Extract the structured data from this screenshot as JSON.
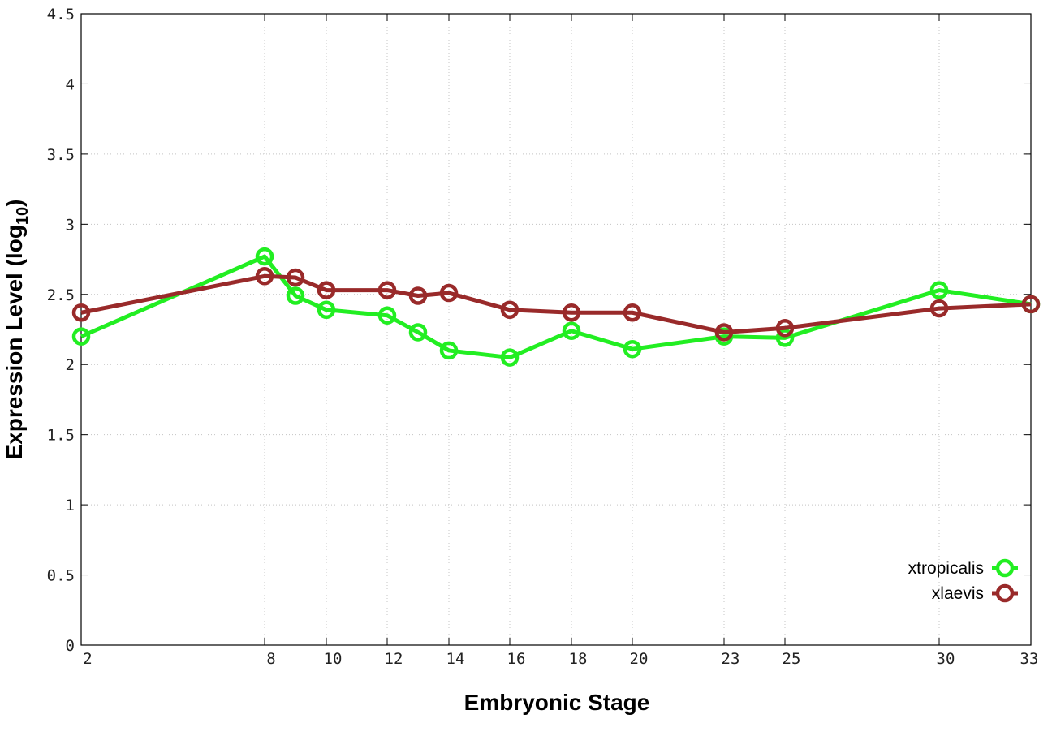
{
  "chart_data": {
    "type": "line",
    "xlabel": "Embryonic Stage",
    "ylabel": "Expression Level (log",
    "ylabel_sub": "10",
    "ylabel_close": ")",
    "x_ticks": [
      "2",
      "8",
      "10",
      "12",
      "14",
      "16",
      "18",
      "20",
      "23",
      "25",
      "30",
      "33"
    ],
    "y_ticks": [
      "0",
      "0.5",
      "1",
      "1.5",
      "2",
      "2.5",
      "3",
      "3.5",
      "4",
      "4.5"
    ],
    "ylim": [
      0,
      4.5
    ],
    "grid": true,
    "legend_position": "bottom-right",
    "series": [
      {
        "name": "xtropicalis",
        "color": "#22ee22",
        "points": [
          {
            "x": "2",
            "y": 2.2
          },
          {
            "x": "8",
            "y": 2.77
          },
          {
            "x": "9",
            "y": 2.49
          },
          {
            "x": "10",
            "y": 2.39
          },
          {
            "x": "12",
            "y": 2.35
          },
          {
            "x": "13",
            "y": 2.23
          },
          {
            "x": "14",
            "y": 2.1
          },
          {
            "x": "16",
            "y": 2.05
          },
          {
            "x": "18",
            "y": 2.24
          },
          {
            "x": "20",
            "y": 2.11
          },
          {
            "x": "23",
            "y": 2.2
          },
          {
            "x": "25",
            "y": 2.19
          },
          {
            "x": "30",
            "y": 2.53
          },
          {
            "x": "33",
            "y": 2.43
          }
        ]
      },
      {
        "name": "xlaevis",
        "color": "#992a2a",
        "points": [
          {
            "x": "2",
            "y": 2.37
          },
          {
            "x": "8",
            "y": 2.63
          },
          {
            "x": "9",
            "y": 2.62
          },
          {
            "x": "10",
            "y": 2.53
          },
          {
            "x": "12",
            "y": 2.53
          },
          {
            "x": "13",
            "y": 2.49
          },
          {
            "x": "14",
            "y": 2.51
          },
          {
            "x": "16",
            "y": 2.39
          },
          {
            "x": "18",
            "y": 2.37
          },
          {
            "x": "20",
            "y": 2.37
          },
          {
            "x": "23",
            "y": 2.23
          },
          {
            "x": "25",
            "y": 2.26
          },
          {
            "x": "30",
            "y": 2.4
          },
          {
            "x": "33",
            "y": 2.43
          }
        ]
      }
    ]
  }
}
